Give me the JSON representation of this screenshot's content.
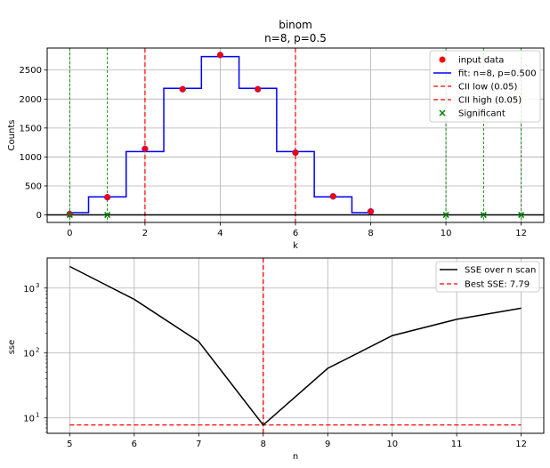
{
  "chart_data": [
    {
      "type": "line",
      "title": "binom",
      "subtitle": "n=8, p=0.5",
      "xlabel": "k",
      "ylabel": "Counts",
      "xlim": [
        -0.6,
        12.6
      ],
      "ylim": [
        -130,
        2880
      ],
      "xticks": [
        0,
        2,
        4,
        6,
        8,
        10,
        12
      ],
      "yticks": [
        0,
        500,
        1000,
        1500,
        2000,
        2500
      ],
      "grid": true,
      "legend_position": "top-right",
      "zero_line": true,
      "series": [
        {
          "name": "input data",
          "kind": "scatter",
          "color": "#ff0000",
          "edge_color": "#1f3cff",
          "x": [
            0,
            1,
            2,
            3,
            4,
            5,
            6,
            7,
            8
          ],
          "y": [
            15,
            305,
            1140,
            2170,
            2760,
            2170,
            1075,
            320,
            60
          ]
        },
        {
          "name": "fit: n=8, p=0.500",
          "kind": "step",
          "color": "#0000ff",
          "x": [
            0,
            1,
            2,
            3,
            4,
            5,
            6,
            7,
            8
          ],
          "y": [
            39,
            312,
            1093,
            2186,
            2733,
            2186,
            1093,
            312,
            39
          ]
        },
        {
          "name": "CII low (0.05)",
          "kind": "vline",
          "color": "#ff0000",
          "x": [
            2
          ]
        },
        {
          "name": "CII high (0.05)",
          "kind": "vline",
          "color": "#ff0000",
          "x": [
            6
          ]
        },
        {
          "name": "Significant",
          "kind": "marker_x",
          "color": "#008000",
          "x": [
            0,
            1,
            10,
            11,
            12
          ],
          "y": [
            0,
            0,
            0,
            0,
            0
          ]
        }
      ]
    },
    {
      "type": "line",
      "xlabel": "n",
      "ylabel": "sse",
      "yscale": "log",
      "xlim": [
        4.65,
        12.35
      ],
      "ylim": [
        5.8,
        2900
      ],
      "xticks": [
        5,
        6,
        7,
        8,
        9,
        10,
        11,
        12
      ],
      "ytick_labels": [
        "10",
        "10",
        "10"
      ],
      "ytick_exponents": [
        "1",
        "2",
        "3"
      ],
      "yticks": [
        10,
        100,
        1000
      ],
      "grid": true,
      "legend_position": "top-right",
      "series": [
        {
          "name": "SSE over n scan",
          "color": "#000000",
          "x": [
            5,
            6,
            7,
            8,
            9,
            10,
            11,
            12
          ],
          "y": [
            2150,
            670,
            150,
            7.79,
            58,
            185,
            330,
            490
          ]
        },
        {
          "name": "Best SSE: 7.79",
          "color": "#ff0000",
          "dashed": true,
          "hline_y": 7.79,
          "vline_x": 8
        }
      ]
    }
  ]
}
